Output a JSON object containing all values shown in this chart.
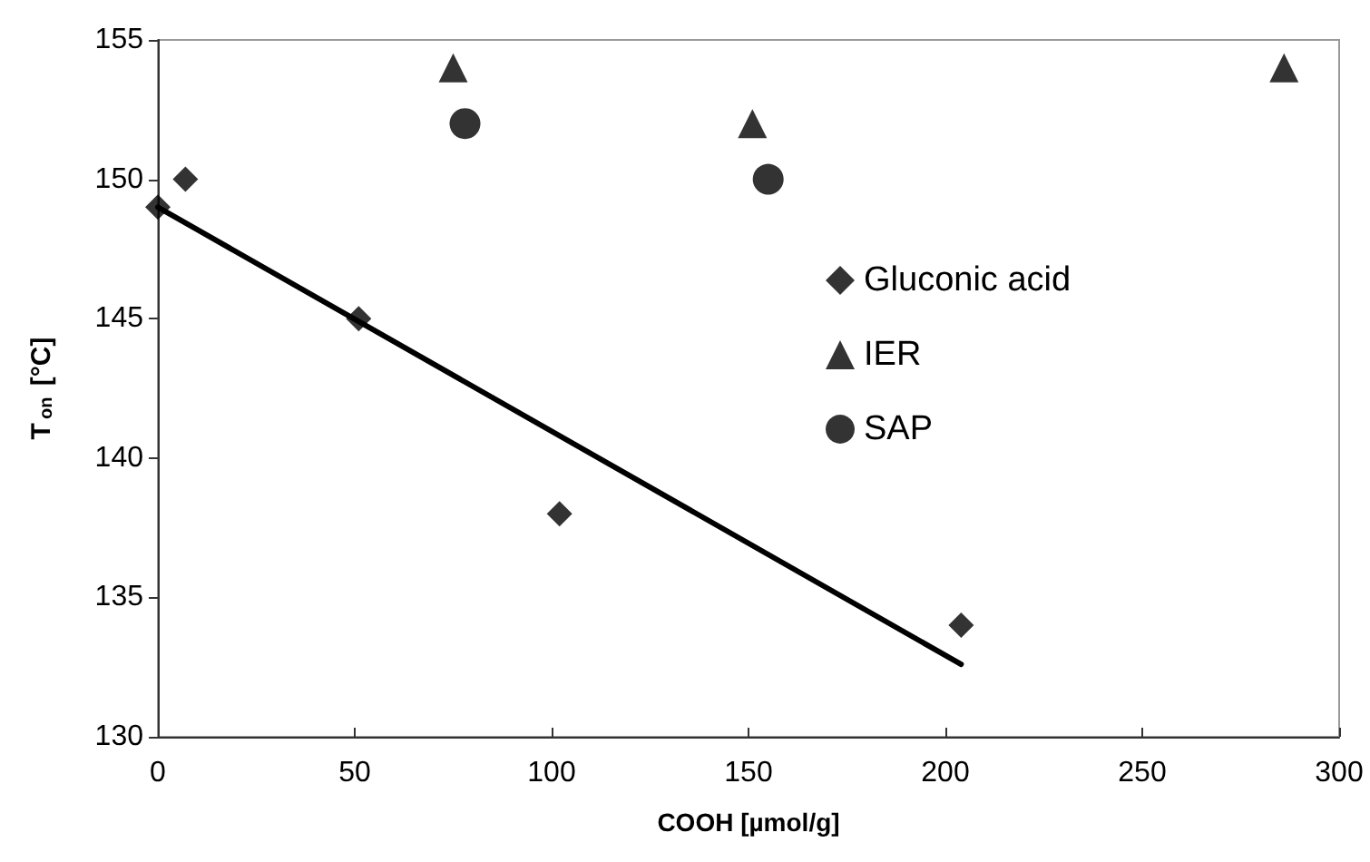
{
  "chart_data": {
    "type": "scatter",
    "xlabel": "COOH [µmol/g]",
    "ylabel": "T$_{on}$ [°C]",
    "xlim": [
      0,
      300
    ],
    "xticks": [
      0,
      50,
      100,
      150,
      200,
      250,
      300
    ],
    "ylim": [
      130,
      155
    ],
    "yticks": [
      130,
      135,
      140,
      145,
      150,
      155
    ],
    "grid": false,
    "legend": "right",
    "series": [
      {
        "name": "Gluconic acid",
        "color": "#000000",
        "marker": "diamond",
        "x": [
          0,
          7,
          51,
          102,
          204
        ],
        "values": [
          149,
          150,
          145,
          138,
          134
        ]
      },
      {
        "name": "IER",
        "color": "#000000",
        "marker": "triangle",
        "x": [
          75,
          151,
          286
        ],
        "values": [
          154,
          152,
          154
        ]
      },
      {
        "name": "SAP",
        "color": "#000000",
        "marker": "circle",
        "x": [
          78,
          155
        ],
        "values": [
          152,
          150
        ]
      },
      {
        "type": "line",
        "color": "#000000",
        "marker": "none",
        "line_style": "solid",
        "x": [
          0,
          204
        ],
        "values": [
          149,
          132.6
        ]
      }
    ]
  }
}
